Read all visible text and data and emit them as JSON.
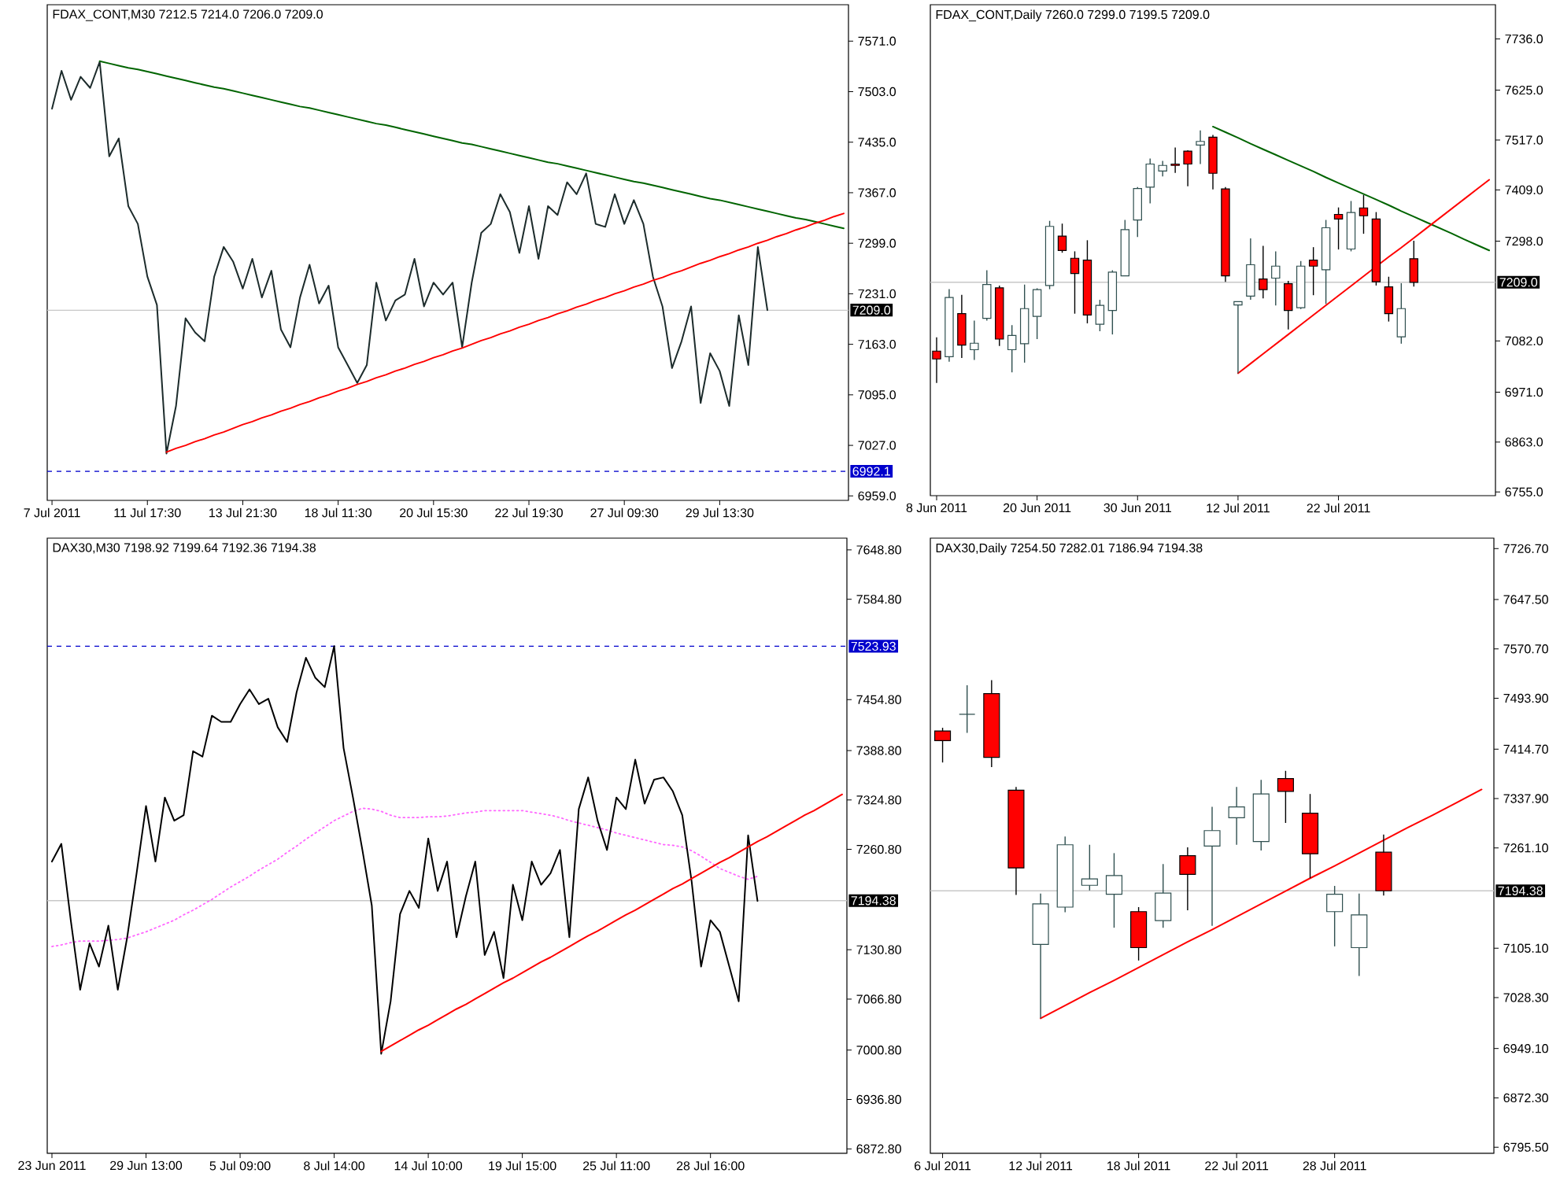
{
  "chart_data": [
    {
      "type": "line",
      "title": "FDAX_CONT,M30 7212.5 7214.0 7206.0 7209.0",
      "categories": [
        "7 Jul 2011",
        null,
        null,
        null,
        null,
        null,
        null,
        null,
        null,
        null,
        "11 Jul 17:30",
        null,
        null,
        null,
        null,
        null,
        null,
        null,
        null,
        null,
        "13 Jul 21:30",
        null,
        null,
        null,
        null,
        null,
        null,
        null,
        null,
        null,
        "18 Jul 11:30",
        null,
        null,
        null,
        null,
        null,
        null,
        null,
        null,
        null,
        "20 Jul 15:30",
        null,
        null,
        null,
        null,
        null,
        null,
        null,
        null,
        null,
        "22 Jul 19:30",
        null,
        null,
        null,
        null,
        null,
        null,
        null,
        null,
        null,
        "27 Jul 09:30",
        null,
        null,
        null,
        null,
        null,
        null,
        null,
        null,
        null,
        "29 Jul 13:30",
        null,
        null,
        null,
        null,
        null,
        null,
        null,
        null,
        null,
        null,
        null,
        null,
        null
      ],
      "ylim": [
        6953,
        7620
      ],
      "yticks": [
        {
          "value": 6959,
          "label": "6959.0"
        },
        {
          "value": 7027,
          "label": "7027.0"
        },
        {
          "value": 7095,
          "label": "7095.0"
        },
        {
          "value": 7163,
          "label": "7163.0"
        },
        {
          "value": 7231,
          "label": "7231.0"
        },
        {
          "value": 7299,
          "label": "7299.0"
        },
        {
          "value": 7367,
          "label": "7367.0"
        },
        {
          "value": 7435,
          "label": "7435.0"
        },
        {
          "value": 7503,
          "label": "7503.0"
        },
        {
          "value": 7571,
          "label": "7571.0"
        }
      ],
      "ref_lines": [
        {
          "axis": "y",
          "value": 7209.0,
          "label": "7209.0",
          "color": "#c8c8c8",
          "line_style": "solid"
        },
        {
          "axis": "y",
          "value": 6992.1,
          "label": "6992.1",
          "color": "#0000cc",
          "line_style": "dashed"
        }
      ],
      "series": [
        {
          "type": "line",
          "color": "#1c2b2b",
          "values": [
            7480,
            7531,
            7492,
            7523,
            7508,
            7543,
            7416,
            7440,
            7349,
            7325,
            7254,
            7216,
            7016,
            7080,
            7198,
            7179,
            7167,
            7254,
            7294,
            7274,
            7238,
            7278,
            7226,
            7262,
            7183,
            7159,
            7226,
            7270,
            7218,
            7242,
            7159,
            7135,
            7111,
            7135,
            7246,
            7195,
            7222,
            7230,
            7278,
            7214,
            7246,
            7230,
            7246,
            7159,
            7246,
            7313,
            7325,
            7365,
            7341,
            7286,
            7349,
            7278,
            7349,
            7337,
            7381,
            7365,
            7393,
            7325,
            7321,
            7365,
            7325,
            7357,
            7325,
            7254,
            7214,
            7131,
            7167,
            7214,
            7084,
            7151,
            7127,
            7080,
            7202,
            7135,
            7294,
            7209,
            null,
            null,
            null,
            null,
            null,
            null,
            null,
            null
          ]
        },
        {
          "type": "line",
          "color": "#006400",
          "values": [
            null,
            null,
            null,
            null,
            null,
            7544,
            7541,
            7538,
            7535,
            7533,
            7530,
            7527,
            7524,
            7521,
            7518,
            7515,
            7512,
            7509,
            7507,
            7504,
            7501,
            7498,
            7495,
            7492,
            7489,
            7486,
            7483,
            7481,
            7478,
            7475,
            7472,
            7469,
            7466,
            7463,
            7460,
            7458,
            7455,
            7452,
            7449,
            7446,
            7443,
            7440,
            7437,
            7434,
            7432,
            7429,
            7426,
            7423,
            7420,
            7417,
            7414,
            7411,
            7408,
            7406,
            7403,
            7400,
            7397,
            7394,
            7391,
            7388,
            7385,
            7382,
            7380,
            7377,
            7374,
            7371,
            7368,
            7365,
            7362,
            7359,
            7357,
            7354,
            7351,
            7348,
            7345,
            7342,
            7339,
            7336,
            7333,
            7331,
            7328,
            7325,
            7322,
            7319
          ]
        },
        {
          "type": "line",
          "color": "#ff0000",
          "values": [
            null,
            null,
            null,
            null,
            null,
            null,
            null,
            null,
            null,
            null,
            null,
            null,
            7018,
            7023,
            7027,
            7032,
            7036,
            7041,
            7045,
            7050,
            7055,
            7059,
            7064,
            7068,
            7073,
            7077,
            7082,
            7086,
            7091,
            7095,
            7100,
            7104,
            7109,
            7113,
            7118,
            7122,
            7127,
            7131,
            7136,
            7140,
            7145,
            7149,
            7154,
            7158,
            7163,
            7168,
            7172,
            7177,
            7181,
            7186,
            7190,
            7195,
            7199,
            7204,
            7208,
            7213,
            7217,
            7222,
            7226,
            7231,
            7235,
            7240,
            7244,
            7249,
            7253,
            7258,
            7262,
            7267,
            7272,
            7276,
            7281,
            7285,
            7290,
            7294,
            7299,
            7303,
            7308,
            7312,
            7317,
            7321,
            7326,
            7330,
            7335,
            7339
          ]
        }
      ]
    },
    {
      "type": "candlestick",
      "title": "FDAX_CONT,Daily 7260.0 7299.0 7199.5 7209.0",
      "categories": [
        "8 Jun 2011",
        null,
        null,
        null,
        null,
        null,
        null,
        null,
        "20 Jun 2011",
        null,
        null,
        null,
        null,
        null,
        null,
        null,
        "30 Jun 2011",
        null,
        null,
        null,
        null,
        null,
        null,
        null,
        "12 Jul 2011",
        null,
        null,
        null,
        null,
        null,
        null,
        null,
        "22 Jul 2011",
        null,
        null,
        null,
        null,
        null,
        null,
        null,
        null,
        null,
        null,
        null,
        null
      ],
      "ylim": [
        6747,
        7810
      ],
      "yticks": [
        {
          "value": 6755,
          "label": "6755.0"
        },
        {
          "value": 6863,
          "label": "6863.0"
        },
        {
          "value": 6971,
          "label": "6971.0"
        },
        {
          "value": 7082,
          "label": "7082.0"
        },
        {
          "value": 7298,
          "label": "7298.0"
        },
        {
          "value": 7409,
          "label": "7409.0"
        },
        {
          "value": 7517,
          "label": "7517.0"
        },
        {
          "value": 7625,
          "label": "7625.0"
        },
        {
          "value": 7736,
          "label": "7736.0"
        }
      ],
      "ref_lines": [
        {
          "axis": "y",
          "value": 7209.0,
          "label": "7209.0",
          "color": "#c8c8c8",
          "line_style": "solid"
        }
      ],
      "ohlc": [
        [
          7060,
          7090,
          6991,
          7043
        ],
        [
          7048,
          7194,
          7037,
          7176
        ],
        [
          7141,
          7182,
          7045,
          7073
        ],
        [
          7063,
          7126,
          7041,
          7077
        ],
        [
          7131,
          7235,
          7126,
          7204
        ],
        [
          7197,
          7202,
          7071,
          7086
        ],
        [
          7063,
          7116,
          7014,
          7094
        ],
        [
          7076,
          7204,
          7035,
          7152
        ],
        [
          7135,
          7196,
          7086,
          7193
        ],
        [
          7202,
          7342,
          7194,
          7330
        ],
        [
          7309,
          7336,
          7273,
          7278
        ],
        [
          7261,
          7276,
          7141,
          7228
        ],
        [
          7257,
          7300,
          7120,
          7138
        ],
        [
          7118,
          7171,
          7103,
          7159
        ],
        [
          7148,
          7235,
          7096,
          7231
        ],
        [
          7223,
          7344,
          7223,
          7323
        ],
        [
          7344,
          7415,
          7307,
          7412
        ],
        [
          7415,
          7477,
          7380,
          7465
        ],
        [
          7450,
          7472,
          7438,
          7462
        ],
        [
          7465,
          7501,
          7446,
          7462
        ],
        [
          7493,
          7495,
          7417,
          7465
        ],
        [
          7506,
          7538,
          7465,
          7514
        ],
        [
          7523,
          7528,
          7410,
          7445
        ],
        [
          7411,
          7415,
          7210,
          7223
        ],
        [
          7160,
          7167,
          7012,
          7167
        ],
        [
          7179,
          7304,
          7171,
          7247
        ],
        [
          7216,
          7288,
          7174,
          7193
        ],
        [
          7218,
          7276,
          7159,
          7244
        ],
        [
          7206,
          7212,
          7107,
          7148
        ],
        [
          7154,
          7255,
          7151,
          7244
        ],
        [
          7257,
          7285,
          7181,
          7244
        ],
        [
          7236,
          7344,
          7162,
          7327
        ],
        [
          7356,
          7371,
          7280,
          7346
        ],
        [
          7281,
          7385,
          7276,
          7360
        ],
        [
          7370,
          7398,
          7314,
          7353
        ],
        [
          7346,
          7361,
          7202,
          7210
        ],
        [
          7199,
          7221,
          7124,
          7141
        ],
        [
          7091,
          7207,
          7076,
          7152
        ],
        [
          7260.0,
          7299.0,
          7199.5,
          7209.0
        ],
        null,
        null,
        null,
        null,
        null,
        null
      ],
      "series": [
        {
          "type": "line",
          "color": "#006400",
          "values": [
            null,
            null,
            null,
            null,
            null,
            null,
            null,
            null,
            null,
            null,
            null,
            null,
            null,
            null,
            null,
            null,
            null,
            null,
            null,
            null,
            null,
            null,
            7546,
            7534,
            7522,
            7509,
            7497,
            7485,
            7473,
            7461,
            7449,
            7436,
            7424,
            7412,
            7400,
            7388,
            7376,
            7363,
            7351,
            7339,
            7327,
            7315,
            7302,
            7290,
            7278
          ]
        },
        {
          "type": "line",
          "color": "#ff0000",
          "values": [
            null,
            null,
            null,
            null,
            null,
            null,
            null,
            null,
            null,
            null,
            null,
            null,
            null,
            null,
            null,
            null,
            null,
            null,
            null,
            null,
            null,
            null,
            null,
            null,
            7012,
            7033,
            7054,
            7075,
            7096,
            7117,
            7138,
            7159,
            7180,
            7201,
            7222,
            7243,
            7264,
            7284,
            7305,
            7326,
            7347,
            7368,
            7389,
            7410,
            7431
          ]
        }
      ]
    },
    {
      "type": "line",
      "title": "DAX30,M30 7198.92 7199.64 7192.36 7194.38",
      "categories": [
        "23 Jun 2011",
        null,
        null,
        null,
        null,
        null,
        null,
        null,
        null,
        null,
        "29 Jun 13:00",
        null,
        null,
        null,
        null,
        null,
        null,
        null,
        null,
        null,
        "5 Jul 09:00",
        null,
        null,
        null,
        null,
        null,
        null,
        null,
        null,
        null,
        "8 Jul 14:00",
        null,
        null,
        null,
        null,
        null,
        null,
        null,
        null,
        null,
        "14 Jul 10:00",
        null,
        null,
        null,
        null,
        null,
        null,
        null,
        null,
        null,
        "19 Jul 15:00",
        null,
        null,
        null,
        null,
        null,
        null,
        null,
        null,
        null,
        "25 Jul 11:00",
        null,
        null,
        null,
        null,
        null,
        null,
        null,
        null,
        null,
        "28 Jul 16:00",
        null,
        null,
        null,
        null,
        null,
        null,
        null,
        null,
        null,
        null,
        null,
        null,
        null,
        null
      ],
      "ylim": [
        6867,
        7664
      ],
      "yticks": [
        {
          "value": 6872.8,
          "label": "6872.80"
        },
        {
          "value": 6936.8,
          "label": "6936.80"
        },
        {
          "value": 7000.8,
          "label": "7000.80"
        },
        {
          "value": 7066.8,
          "label": "7066.80"
        },
        {
          "value": 7130.8,
          "label": "7130.80"
        },
        {
          "value": 7260.8,
          "label": "7260.80"
        },
        {
          "value": 7324.8,
          "label": "7324.80"
        },
        {
          "value": 7388.8,
          "label": "7388.80"
        },
        {
          "value": 7454.8,
          "label": "7454.80"
        },
        {
          "value": 7584.8,
          "label": "7584.80"
        },
        {
          "value": 7648.8,
          "label": "7648.80"
        }
      ],
      "ref_lines": [
        {
          "axis": "y",
          "value": 7523.93,
          "label": "7523.93",
          "color": "#0000cc",
          "line_style": "dashed"
        },
        {
          "axis": "y",
          "value": 7194.38,
          "label": "7194.38",
          "color": "#c8c8c8",
          "line_style": "solid"
        }
      ],
      "series": [
        {
          "type": "line",
          "color": "#ff66ff",
          "line_style": "dotted",
          "values": [
            7135,
            7137,
            7140,
            7142,
            7142,
            7142,
            7143,
            7144,
            7146,
            7150,
            7154,
            7159,
            7164,
            7169,
            7176,
            7182,
            7189,
            7196,
            7204,
            7212,
            7219,
            7226,
            7234,
            7241,
            7248,
            7257,
            7265,
            7274,
            7282,
            7290,
            7298,
            7304,
            7310,
            7314,
            7313,
            7310,
            7305,
            7302,
            7302,
            7302,
            7303,
            7303,
            7304,
            7306,
            7308,
            7309,
            7311,
            7311,
            7311,
            7311,
            7311,
            7309,
            7307,
            7305,
            7302,
            7298,
            7295,
            7292,
            7289,
            7286,
            7282,
            7279,
            7276,
            7273,
            7270,
            7267,
            7266,
            7264,
            7259,
            7252,
            7244,
            7236,
            7231,
            7226,
            7222,
            7226,
            null,
            null,
            null,
            null,
            null,
            null,
            null,
            null,
            null
          ]
        },
        {
          "type": "line",
          "color": "#000000",
          "values": [
            7245,
            7268,
            7169,
            7079,
            7139,
            7109,
            7162,
            7079,
            7147,
            7230,
            7317,
            7245,
            7328,
            7298,
            7305,
            7388,
            7381,
            7434,
            7426,
            7426,
            7449,
            7468,
            7449,
            7456,
            7419,
            7400,
            7464,
            7509,
            7483,
            7471,
            7524,
            7392,
            7328,
            7260,
            7188,
            6996,
            7064,
            7177,
            7207,
            7185,
            7275,
            7207,
            7245,
            7147,
            7200,
            7245,
            7124,
            7154,
            7094,
            7215,
            7169,
            7245,
            7215,
            7230,
            7260,
            7147,
            7313,
            7354,
            7298,
            7260,
            7328,
            7313,
            7377,
            7320,
            7351,
            7354,
            7336,
            7305,
            7219,
            7109,
            7169,
            7154,
            7109,
            7064,
            7279,
            7194,
            null,
            null,
            null,
            null,
            null,
            null,
            null,
            null,
            null
          ]
        },
        {
          "type": "line",
          "color": "#ff0000",
          "values": [
            null,
            null,
            null,
            null,
            null,
            null,
            null,
            null,
            null,
            null,
            null,
            null,
            null,
            null,
            null,
            null,
            null,
            null,
            null,
            null,
            null,
            null,
            null,
            null,
            null,
            null,
            null,
            null,
            null,
            null,
            null,
            null,
            null,
            null,
            null,
            6999,
            7006,
            7013,
            7020,
            7027,
            7033,
            7040,
            7047,
            7054,
            7060,
            7067,
            7074,
            7081,
            7088,
            7094,
            7101,
            7108,
            7115,
            7121,
            7128,
            7135,
            7142,
            7149,
            7155,
            7162,
            7169,
            7176,
            7182,
            7189,
            7196,
            7203,
            7210,
            7216,
            7223,
            7230,
            7237,
            7244,
            7250,
            7257,
            7264,
            7271,
            7277,
            7284,
            7291,
            7298,
            7305,
            7311,
            7318,
            7325,
            7332
          ]
        }
      ]
    },
    {
      "type": "candlestick",
      "title": "DAX30,Daily 7254.50 7282.01 7186.94 7194.38",
      "categories": [
        "6 Jul 2011",
        null,
        null,
        null,
        "12 Jul 2011",
        null,
        null,
        null,
        "18 Jul 2011",
        null,
        null,
        null,
        "22 Jul 2011",
        null,
        null,
        null,
        "28 Jul 2011",
        null,
        null,
        null,
        null,
        null,
        null
      ],
      "ylim": [
        6786,
        7743
      ],
      "yticks": [
        {
          "value": 6795.5,
          "label": "6795.50"
        },
        {
          "value": 6872.3,
          "label": "6872.30"
        },
        {
          "value": 6949.1,
          "label": "6949.10"
        },
        {
          "value": 7028.3,
          "label": "7028.30"
        },
        {
          "value": 7105.1,
          "label": "7105.10"
        },
        {
          "value": 7261.1,
          "label": "7261.10"
        },
        {
          "value": 7337.9,
          "label": "7337.90"
        },
        {
          "value": 7414.7,
          "label": "7414.70"
        },
        {
          "value": 7493.9,
          "label": "7493.90"
        },
        {
          "value": 7570.7,
          "label": "7570.70"
        },
        {
          "value": 7647.5,
          "label": "7647.50"
        },
        {
          "value": 7726.7,
          "label": "7726.70"
        }
      ],
      "ref_lines": [
        {
          "axis": "y",
          "value": 7194.38,
          "label": "7194.38",
          "color": "#c8c8c8",
          "line_style": "solid"
        }
      ],
      "ohlc": [
        [
          7443,
          7448,
          7394,
          7428
        ],
        [
          7469,
          7514,
          7440,
          7469
        ],
        [
          7501,
          7522,
          7387,
          7402
        ],
        [
          7351,
          7356,
          7188,
          7230
        ],
        [
          7111,
          7190,
          6996,
          7174
        ],
        [
          7169,
          7279,
          7161,
          7266
        ],
        [
          7203,
          7266,
          7195,
          7213
        ],
        [
          7189,
          7253,
          7137,
          7218
        ],
        [
          7162,
          7169,
          7086,
          7106
        ],
        [
          7148,
          7236,
          7137,
          7191
        ],
        [
          7249,
          7262,
          7164,
          7220
        ],
        [
          7264,
          7325,
          7140,
          7288
        ],
        [
          7308,
          7356,
          7266,
          7325
        ],
        [
          7271,
          7367,
          7257,
          7345
        ],
        [
          7369,
          7381,
          7300,
          7349
        ],
        [
          7315,
          7345,
          7214,
          7252
        ],
        [
          7162,
          7202,
          7108,
          7189
        ],
        [
          7106,
          7190,
          7062,
          7157
        ],
        [
          7254.5,
          7282.01,
          7186.94,
          7194.38
        ],
        null,
        null,
        null,
        null
      ],
      "series": [
        {
          "type": "line",
          "color": "#ff0000",
          "values": [
            null,
            null,
            null,
            null,
            6996,
            7016,
            7036,
            7055,
            7075,
            7095,
            7115,
            7134,
            7154,
            7174,
            7194,
            7214,
            7233,
            7253,
            7273,
            7293,
            7312,
            7332,
            7352
          ]
        }
      ]
    }
  ]
}
